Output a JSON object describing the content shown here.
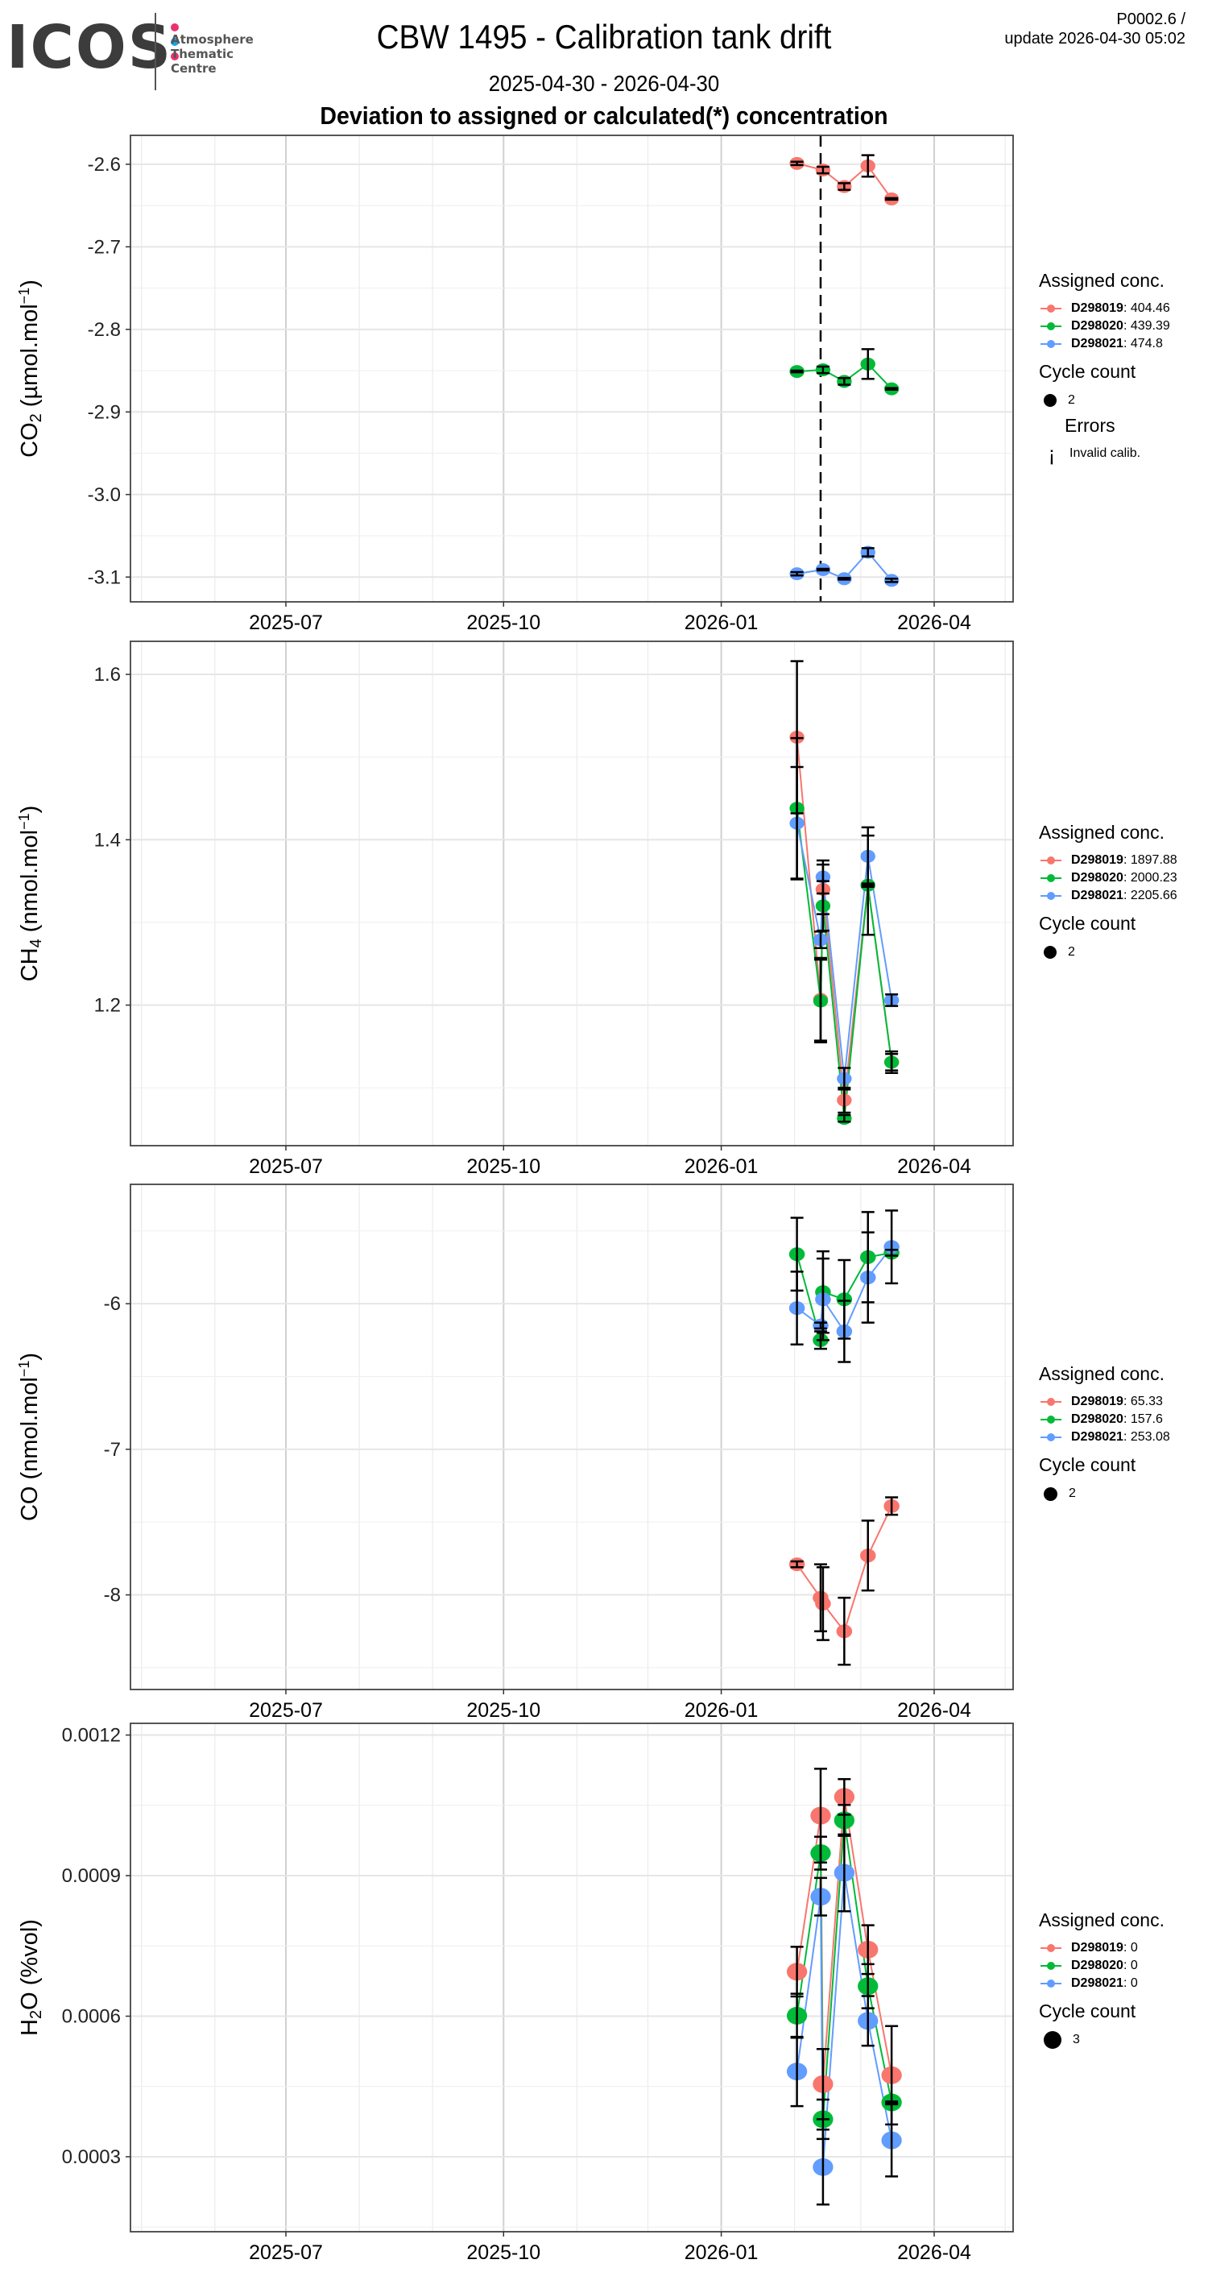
{
  "header": {
    "logo_text": "ICOS",
    "logo_sub": [
      "Atmosphere",
      "Thematic",
      "Centre"
    ],
    "logo_dot_colors": [
      "#e8336f",
      "#1a9fe3",
      "#e8336f"
    ],
    "title": "CBW 1495 - Calibration tank drift",
    "date_range": "2025-04-30 - 2026-04-30",
    "subtitle": "Deviation to assigned or calculated(*) concentration",
    "version": "P0002.6 /",
    "update": "update  2026-04-30 05:02"
  },
  "colors": {
    "D298019": "#f8766d",
    "D298020": "#00ba38",
    "D298021": "#619cff"
  },
  "chart_data": [
    {
      "type": "line",
      "panel": "co2",
      "ylabel": "CO2 (µmol.mol-1)",
      "ylabel_main": "CO",
      "ylabel_sub": "2",
      "ylabel_unit": " (µmol.mol",
      "ylabel_sup": "-1",
      "ylabel_close": ")",
      "yticks": [
        -2.6,
        -2.7,
        -2.8,
        -2.9,
        -3.0,
        -3.1
      ],
      "ytick_labels": [
        "-2.6",
        "-2.7",
        "-2.8",
        "-2.9",
        "-3.0",
        "-3.1"
      ],
      "ylim": [
        -3.13,
        -2.565
      ],
      "xticks": [
        "2025-07-01",
        "2025-10-01",
        "2026-01-01",
        "2026-04-01"
      ],
      "xtick_labels": [
        "2025-07",
        "2025-10",
        "2026-01",
        "2026-04"
      ],
      "xlim": [
        "2025-04-30",
        "2026-04-30"
      ],
      "vline": "2026-02-12",
      "grid": true,
      "legend_title": "Assigned conc.",
      "legend": [
        {
          "id": "D298019",
          "value": "404.46"
        },
        {
          "id": "D298020",
          "value": "439.39"
        },
        {
          "id": "D298021",
          "value": "474.8"
        }
      ],
      "cycle_title": "Cycle count",
      "cycle_value": "2",
      "errors_title": "Errors",
      "errors_glyph": "¡",
      "errors_label": "Invalid calib.",
      "series": [
        {
          "name": "D298019",
          "points": [
            {
              "x": "2026-02-02",
              "y": -2.599,
              "err": 0.002
            },
            {
              "x": "2026-02-13",
              "y": -2.607,
              "err": 0.004
            },
            {
              "x": "2026-02-22",
              "y": -2.627,
              "err": 0.004
            },
            {
              "x": "2026-03-04",
              "y": -2.602,
              "err": 0.013
            },
            {
              "x": "2026-03-14",
              "y": -2.642,
              "err": 0.001
            }
          ]
        },
        {
          "name": "D298020",
          "points": [
            {
              "x": "2026-02-02",
              "y": -2.851,
              "err": 0.001
            },
            {
              "x": "2026-02-13",
              "y": -2.849,
              "err": 0.004
            },
            {
              "x": "2026-02-22",
              "y": -2.863,
              "err": 0.004
            },
            {
              "x": "2026-03-04",
              "y": -2.842,
              "err": 0.018
            },
            {
              "x": "2026-03-14",
              "y": -2.872,
              "err": 0.001
            }
          ]
        },
        {
          "name": "D298021",
          "points": [
            {
              "x": "2026-02-02",
              "y": -3.096,
              "err": 0.002
            },
            {
              "x": "2026-02-13",
              "y": -3.091,
              "err": 0.001
            },
            {
              "x": "2026-02-22",
              "y": -3.102,
              "err": 0.001
            },
            {
              "x": "2026-03-04",
              "y": -3.07,
              "err": 0.005
            },
            {
              "x": "2026-03-14",
              "y": -3.104,
              "err": 0.002
            }
          ]
        }
      ]
    },
    {
      "type": "line",
      "panel": "ch4",
      "ylabel": "CH4 (nmol.mol-1)",
      "ylabel_main": "CH",
      "ylabel_sub": "4",
      "ylabel_unit": " (nmol.mol",
      "ylabel_sup": "-1",
      "ylabel_close": ")",
      "yticks": [
        1.6,
        1.4,
        1.2
      ],
      "ytick_labels": [
        "1.6",
        "1.4",
        "1.2"
      ],
      "ylim": [
        1.03,
        1.64
      ],
      "xticks": [
        "2025-07-01",
        "2025-10-01",
        "2026-01-01",
        "2026-04-01"
      ],
      "xtick_labels": [
        "2025-07",
        "2025-10",
        "2026-01",
        "2026-04"
      ],
      "xlim": [
        "2025-04-30",
        "2026-04-30"
      ],
      "grid": true,
      "legend_title": "Assigned conc.",
      "legend": [
        {
          "id": "D298019",
          "value": "1897.88"
        },
        {
          "id": "D298020",
          "value": "2000.23"
        },
        {
          "id": "D298021",
          "value": "2205.66"
        }
      ],
      "cycle_title": "Cycle count",
      "cycle_value": "2",
      "series": [
        {
          "name": "D298019",
          "points": [
            {
              "x": "2026-02-02",
              "y": 1.524,
              "err": 0.092
            },
            {
              "x": "2026-02-12",
              "y": 1.207,
              "err": 0.05
            },
            {
              "x": "2026-02-13",
              "y": 1.34,
              "err": 0.03
            },
            {
              "x": "2026-02-22",
              "y": 1.085,
              "err": 0.015
            },
            {
              "x": "2026-03-04",
              "y": 1.345,
              "err": 0.06
            },
            {
              "x": "2026-03-14",
              "y": 1.131,
              "err": 0.01
            }
          ]
        },
        {
          "name": "D298020",
          "points": [
            {
              "x": "2026-02-02",
              "y": 1.438,
              "err": 0.085
            },
            {
              "x": "2026-02-12",
              "y": 1.205,
              "err": 0.05
            },
            {
              "x": "2026-02-13",
              "y": 1.32,
              "err": 0.03
            },
            {
              "x": "2026-02-22",
              "y": 1.063,
              "err": 0.004
            },
            {
              "x": "2026-03-04",
              "y": 1.345,
              "err": 0.002
            },
            {
              "x": "2026-03-14",
              "y": 1.131,
              "err": 0.013
            }
          ]
        },
        {
          "name": "D298021",
          "points": [
            {
              "x": "2026-02-02",
              "y": 1.42,
              "err": 0.068
            },
            {
              "x": "2026-02-12",
              "y": 1.279,
              "err": 0.01
            },
            {
              "x": "2026-02-13",
              "y": 1.355,
              "err": 0.02
            },
            {
              "x": "2026-02-22",
              "y": 1.111,
              "err": 0.013
            },
            {
              "x": "2026-03-04",
              "y": 1.38,
              "err": 0.035
            },
            {
              "x": "2026-03-14",
              "y": 1.206,
              "err": 0.007
            }
          ]
        }
      ]
    },
    {
      "type": "line",
      "panel": "co",
      "ylabel": "CO (nmol.mol-1)",
      "ylabel_main": "CO",
      "ylabel_sub": "",
      "ylabel_unit": " (nmol.mol",
      "ylabel_sup": "-1",
      "ylabel_close": ")",
      "yticks": [
        -6,
        -7,
        -8
      ],
      "ytick_labels": [
        "-6",
        "-7",
        "-8"
      ],
      "ylim": [
        -8.65,
        -5.18
      ],
      "xticks": [
        "2025-07-01",
        "2025-10-01",
        "2026-01-01",
        "2026-04-01"
      ],
      "xtick_labels": [
        "2025-07",
        "2025-10",
        "2026-01",
        "2026-04"
      ],
      "xlim": [
        "2025-04-30",
        "2026-04-30"
      ],
      "grid": true,
      "legend_title": "Assigned conc.",
      "legend": [
        {
          "id": "D298019",
          "value": "65.33"
        },
        {
          "id": "D298020",
          "value": "157.6"
        },
        {
          "id": "D298021",
          "value": "253.08"
        }
      ],
      "cycle_title": "Cycle count",
      "cycle_value": "2",
      "series": [
        {
          "name": "D298019",
          "points": [
            {
              "x": "2026-02-02",
              "y": -7.79,
              "err": 0.02
            },
            {
              "x": "2026-02-12",
              "y": -8.02,
              "err": 0.23
            },
            {
              "x": "2026-02-13",
              "y": -8.06,
              "err": 0.25
            },
            {
              "x": "2026-02-22",
              "y": -8.25,
              "err": 0.23
            },
            {
              "x": "2026-03-04",
              "y": -7.73,
              "err": 0.24
            },
            {
              "x": "2026-03-14",
              "y": -7.39,
              "err": 0.06
            }
          ]
        },
        {
          "name": "D298020",
          "points": [
            {
              "x": "2026-02-02",
              "y": -5.66,
              "err": 0.25
            },
            {
              "x": "2026-02-12",
              "y": -6.25,
              "err": 0.06
            },
            {
              "x": "2026-02-13",
              "y": -5.92,
              "err": 0.28
            },
            {
              "x": "2026-02-22",
              "y": -5.97,
              "err": 0.27
            },
            {
              "x": "2026-03-04",
              "y": -5.68,
              "err": 0.31
            },
            {
              "x": "2026-03-14",
              "y": -5.65,
              "err": 0.02
            }
          ]
        },
        {
          "name": "D298021",
          "points": [
            {
              "x": "2026-02-02",
              "y": -6.03,
              "err": 0.25
            },
            {
              "x": "2026-02-12",
              "y": -6.15,
              "err": 0.02
            },
            {
              "x": "2026-02-13",
              "y": -5.97,
              "err": 0.28
            },
            {
              "x": "2026-02-22",
              "y": -6.19,
              "err": 0.21
            },
            {
              "x": "2026-03-04",
              "y": -5.82,
              "err": 0.31
            },
            {
              "x": "2026-03-14",
              "y": -5.61,
              "err": 0.25
            }
          ]
        }
      ]
    },
    {
      "type": "line",
      "panel": "h2o",
      "ylabel": "H2O (%vol)",
      "ylabel_main": "H",
      "ylabel_sub": "2",
      "ylabel_unit": "O (%vol",
      "ylabel_sup": "",
      "ylabel_close": ")",
      "yticks": [
        0.0012,
        0.0009,
        0.0006,
        0.0003
      ],
      "ytick_labels": [
        "0.0012",
        "0.0009",
        "0.0006",
        "0.0003"
      ],
      "ylim": [
        0.00014,
        0.001225
      ],
      "xticks": [
        "2025-07-01",
        "2025-10-01",
        "2026-01-01",
        "2026-04-01"
      ],
      "xtick_labels": [
        "2025-07",
        "2025-10",
        "2026-01",
        "2026-04"
      ],
      "xlim": [
        "2025-04-30",
        "2026-04-30"
      ],
      "grid": true,
      "legend_title": "Assigned conc.",
      "legend": [
        {
          "id": "D298019",
          "value": "0"
        },
        {
          "id": "D298020",
          "value": "0"
        },
        {
          "id": "D298021",
          "value": "0"
        }
      ],
      "cycle_title": "Cycle count",
      "cycle_value": "3",
      "series": [
        {
          "name": "D298019",
          "points": [
            {
              "x": "2026-02-02",
              "y": 0.000695,
              "err": 5.3e-05
            },
            {
              "x": "2026-02-12",
              "y": 0.001028,
              "err": 0.0001
            },
            {
              "x": "2026-02-13",
              "y": 0.000455,
              "err": 7.5e-05
            },
            {
              "x": "2026-02-22",
              "y": 0.001068,
              "err": 3.8e-05
            },
            {
              "x": "2026-03-04",
              "y": 0.000742,
              "err": 5.2e-05
            },
            {
              "x": "2026-03-14",
              "y": 0.000474,
              "err": 0.000105
            }
          ]
        },
        {
          "name": "D298020",
          "points": [
            {
              "x": "2026-02-02",
              "y": 0.000601,
              "err": 4.7e-05
            },
            {
              "x": "2026-02-12",
              "y": 0.000948,
              "err": 3.5e-05
            },
            {
              "x": "2026-02-13",
              "y": 0.00038,
              "err": 4.2e-05
            },
            {
              "x": "2026-02-22",
              "y": 0.001018,
              "err": 3.3e-05
            },
            {
              "x": "2026-03-04",
              "y": 0.000664,
              "err": 4.7e-05
            },
            {
              "x": "2026-03-14",
              "y": 0.000416,
              "err": 2e-06
            }
          ]
        },
        {
          "name": "D298021",
          "points": [
            {
              "x": "2026-02-02",
              "y": 0.000482,
              "err": 7.4e-05
            },
            {
              "x": "2026-02-12",
              "y": 0.000855,
              "err": 4e-05
            },
            {
              "x": "2026-02-13",
              "y": 0.000278,
              "err": 8e-05
            },
            {
              "x": "2026-02-22",
              "y": 0.000906,
              "err": 8.2e-05
            },
            {
              "x": "2026-03-04",
              "y": 0.00059,
              "err": 5.3e-05
            },
            {
              "x": "2026-03-14",
              "y": 0.000335,
              "err": 7.7e-05
            }
          ]
        }
      ]
    }
  ]
}
